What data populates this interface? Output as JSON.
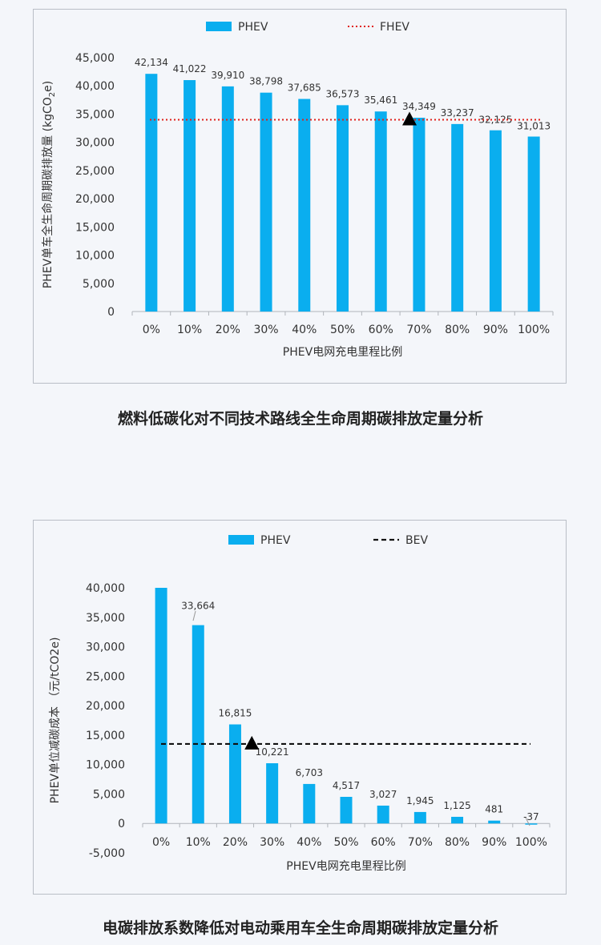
{
  "chart_data": [
    {
      "type": "bar",
      "title": "",
      "xlabel": "PHEV电网充电里程比例",
      "ylabel_main": "PHEV单车全生命周期碳排放量 (kgCO",
      "ylabel_sub": "2",
      "ylabel_end": "e)",
      "categories": [
        "0%",
        "10%",
        "20%",
        "30%",
        "40%",
        "50%",
        "60%",
        "70%",
        "80%",
        "90%",
        "100%"
      ],
      "series": [
        {
          "name": "PHEV",
          "values": [
            42134,
            41022,
            39910,
            38798,
            37685,
            36573,
            35461,
            34349,
            33237,
            32125,
            31013
          ]
        }
      ],
      "data_labels": [
        "42,134",
        "41,022",
        "39,910",
        "38,798",
        "37,685",
        "36,573",
        "35,461",
        "34,349",
        "33,237",
        "32,125",
        "31,013"
      ],
      "reference_line": {
        "name": "FHEV",
        "value": 34000,
        "style": "dotted",
        "color": "#e0201b"
      },
      "marker": {
        "category_position": 6.75,
        "value": 34000,
        "shape": "triangle"
      },
      "ylim": [
        0,
        45000
      ],
      "yticks": [
        0,
        5000,
        10000,
        15000,
        20000,
        25000,
        30000,
        35000,
        40000,
        45000
      ],
      "ytick_labels": [
        "0",
        "5,000",
        "10,000",
        "15,000",
        "20,000",
        "25,000",
        "30,000",
        "35,000",
        "40,000",
        "45,000"
      ],
      "legend_position": "top",
      "grid": false,
      "bar_color": "#0aaeef"
    },
    {
      "type": "bar",
      "title": "",
      "xlabel": "PHEV电网充电里程比例",
      "ylabel": "PHEV单位减碳成本 （元/tCO2e)",
      "categories": [
        "0%",
        "10%",
        "20%",
        "30%",
        "40%",
        "50%",
        "60%",
        "70%",
        "80%",
        "90%",
        "100%"
      ],
      "series": [
        {
          "name": "PHEV",
          "values": [
            40000,
            33664,
            16815,
            10221,
            6703,
            4517,
            3027,
            1945,
            1125,
            481,
            -37
          ]
        }
      ],
      "data_labels": [
        "",
        "33,664",
        "16,815",
        "10,221",
        "6,703",
        "4,517",
        "3,027",
        "1,945",
        "1,125",
        "481",
        "-37"
      ],
      "reference_line": {
        "name": "BEV",
        "value": 13500,
        "style": "dashed",
        "color": "#111111"
      },
      "marker": {
        "category_position": 2.45,
        "value": 13500,
        "shape": "triangle"
      },
      "ylim": [
        -5000,
        40000
      ],
      "yticks": [
        -5000,
        0,
        5000,
        10000,
        15000,
        20000,
        25000,
        30000,
        35000,
        40000
      ],
      "ytick_labels": [
        "-5,000",
        "0",
        "5,000",
        "10,000",
        "15,000",
        "20,000",
        "25,000",
        "30,000",
        "35,000",
        "40,000"
      ],
      "legend_position": "top",
      "grid": false,
      "bar_color": "#0aaeef"
    }
  ],
  "captions": [
    "燃料低碳化对不同技术路线全生命周期碳排放定量分析",
    "电碳排放系数降低对电动乘用车全生命周期碳排放定量分析"
  ]
}
